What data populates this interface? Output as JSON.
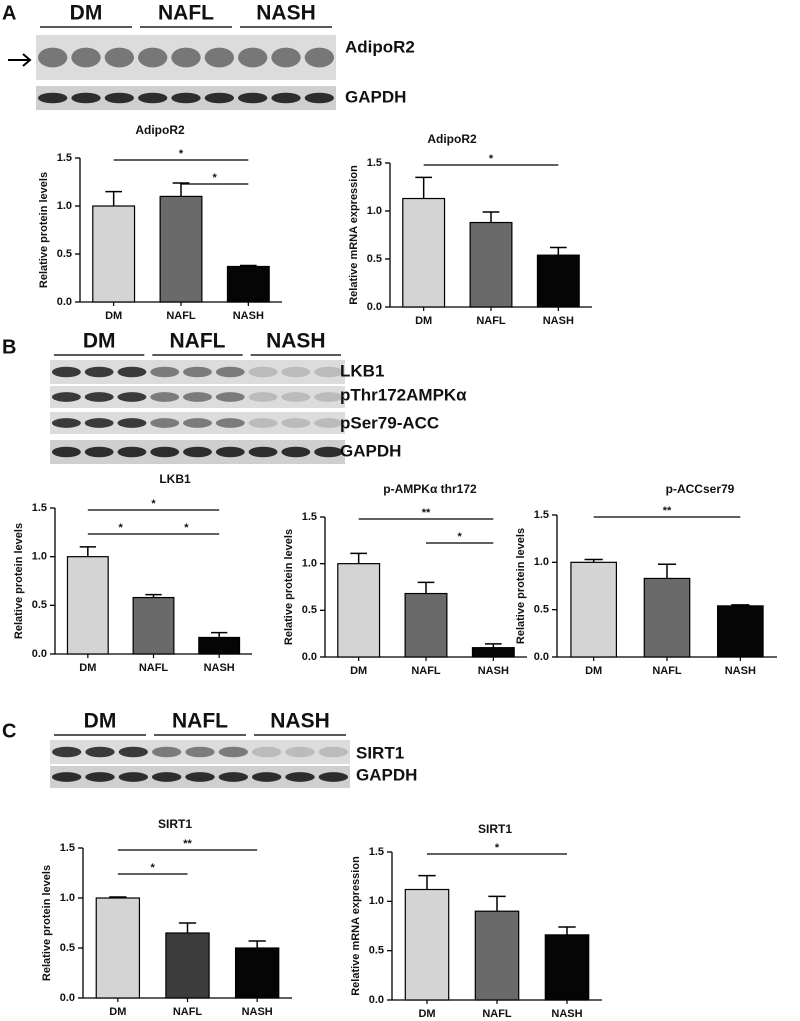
{
  "panels": [
    {
      "label": "A",
      "groups": [
        "DM",
        "NAFL",
        "NASH"
      ],
      "blots": [
        "AdipoR2",
        "GAPDH"
      ]
    },
    {
      "label": "B",
      "groups": [
        "DM",
        "NAFL",
        "NASH"
      ],
      "blots": [
        "LKB1",
        "pThr172AMPKα",
        "pSer79-ACC",
        "GAPDH"
      ]
    },
    {
      "label": "C",
      "groups": [
        "DM",
        "NAFL",
        "NASH"
      ],
      "blots": [
        "SIRT1",
        "GAPDH"
      ]
    }
  ],
  "chart_data": [
    {
      "type": "bar",
      "title": "AdipoR2",
      "y_label": "Relative protein levels",
      "categories": [
        "DM",
        "NAFL",
        "NASH"
      ],
      "values": [
        1.0,
        1.1,
        0.37
      ],
      "errors": [
        0.15,
        0.14,
        0.01
      ],
      "colors": [
        "#d4d4d4",
        "#6a6a6a",
        "#050505"
      ],
      "ylim": [
        0,
        1.5
      ],
      "yticks": [
        {
          "value": 0,
          "label": "0.0"
        },
        {
          "value": 0.5,
          "label": "0.5"
        },
        {
          "value": 1,
          "label": "1.0"
        },
        {
          "value": 1.5,
          "label": "1.5"
        }
      ],
      "annotations": [
        {
          "text": "*",
          "between": [
            "DM",
            "NASH"
          ]
        },
        {
          "text": "*",
          "between": [
            "NAFL",
            "NASH"
          ]
        }
      ]
    },
    {
      "type": "bar",
      "title": "AdipoR2",
      "y_label": "Relative mRNA expression",
      "categories": [
        "DM",
        "NAFL",
        "NASH"
      ],
      "values": [
        1.13,
        0.88,
        0.54
      ],
      "errors": [
        0.22,
        0.11,
        0.08
      ],
      "colors": [
        "#d4d4d4",
        "#6a6a6a",
        "#050505"
      ],
      "ylim": [
        0,
        1.5
      ],
      "yticks": [
        {
          "value": 0,
          "label": "0.0"
        },
        {
          "value": 0.5,
          "label": "0.5"
        },
        {
          "value": 1,
          "label": "1.0"
        },
        {
          "value": 1.5,
          "label": "1.5"
        }
      ],
      "annotations": [
        {
          "text": "*",
          "between": [
            "DM",
            "NASH"
          ]
        }
      ]
    },
    {
      "type": "bar",
      "title": "LKB1",
      "y_label": "Relative protein levels",
      "categories": [
        "DM",
        "NAFL",
        "NASH"
      ],
      "values": [
        1.0,
        0.58,
        0.17
      ],
      "errors": [
        0.1,
        0.03,
        0.05
      ],
      "colors": [
        "#d4d4d4",
        "#6a6a6a",
        "#050505"
      ],
      "ylim": [
        0,
        1.5
      ],
      "yticks": [
        {
          "value": 0,
          "label": "0.0"
        },
        {
          "value": 0.5,
          "label": "0.5"
        },
        {
          "value": 1,
          "label": "1.0"
        },
        {
          "value": 1.5,
          "label": "1.5"
        }
      ],
      "annotations": [
        {
          "text": "*",
          "between": [
            "DM",
            "NASH"
          ]
        },
        {
          "text": "*",
          "between": [
            "DM",
            "NAFL"
          ]
        },
        {
          "text": "*",
          "between": [
            "NAFL",
            "NASH"
          ]
        }
      ]
    },
    {
      "type": "bar",
      "title": "p-AMPKα thr172",
      "y_label": "Relative protein levels",
      "categories": [
        "DM",
        "NAFL",
        "NASH"
      ],
      "values": [
        1.0,
        0.68,
        0.1
      ],
      "errors": [
        0.11,
        0.12,
        0.04
      ],
      "colors": [
        "#d4d4d4",
        "#6a6a6a",
        "#050505"
      ],
      "ylim": [
        0,
        1.5
      ],
      "yticks": [
        {
          "value": 0,
          "label": "0.0"
        },
        {
          "value": 0.5,
          "label": "0.5"
        },
        {
          "value": 1,
          "label": "1.0"
        },
        {
          "value": 1.5,
          "label": "1.5"
        }
      ],
      "annotations": [
        {
          "text": "**",
          "between": [
            "DM",
            "NASH"
          ]
        },
        {
          "text": "*",
          "between": [
            "NAFL",
            "NASH"
          ]
        }
      ]
    },
    {
      "type": "bar",
      "title": "p-ACCser79",
      "y_label": "Relative protein levels",
      "categories": [
        "DM",
        "NAFL",
        "NASH"
      ],
      "values": [
        1.0,
        0.83,
        0.54
      ],
      "errors": [
        0.03,
        0.15,
        0.01
      ],
      "colors": [
        "#d4d4d4",
        "#6a6a6a",
        "#050505"
      ],
      "ylim": [
        0,
        1.5
      ],
      "yticks": [
        {
          "value": 0,
          "label": "0.0"
        },
        {
          "value": 0.5,
          "label": "0.5"
        },
        {
          "value": 1,
          "label": "1.0"
        },
        {
          "value": 1.5,
          "label": "1.5"
        }
      ],
      "annotations": [
        {
          "text": "**",
          "between": [
            "DM",
            "NASH"
          ]
        }
      ]
    },
    {
      "type": "bar",
      "title": "SIRT1",
      "y_label": "Relative protein levels",
      "categories": [
        "DM",
        "NAFL",
        "NASH"
      ],
      "values": [
        1.0,
        0.65,
        0.5
      ],
      "errors": [
        0.01,
        0.1,
        0.07
      ],
      "colors": [
        "#d4d4d4",
        "#3c3c3c",
        "#050505"
      ],
      "ylim": [
        0,
        1.5
      ],
      "yticks": [
        {
          "value": 0,
          "label": "0.0"
        },
        {
          "value": 0.5,
          "label": "0.5"
        },
        {
          "value": 1,
          "label": "1.0"
        },
        {
          "value": 1.5,
          "label": "1.5"
        }
      ],
      "annotations": [
        {
          "text": "**",
          "between": [
            "DM",
            "NASH"
          ]
        },
        {
          "text": "*",
          "between": [
            "DM",
            "NAFL"
          ]
        }
      ]
    },
    {
      "type": "bar",
      "title": "SIRT1",
      "y_label": "Relative mRNA expression",
      "categories": [
        "DM",
        "NAFL",
        "NASH"
      ],
      "values": [
        1.12,
        0.9,
        0.66
      ],
      "errors": [
        0.14,
        0.15,
        0.08
      ],
      "colors": [
        "#d4d4d4",
        "#6a6a6a",
        "#050505"
      ],
      "ylim": [
        0,
        1.5
      ],
      "yticks": [
        {
          "value": 0,
          "label": "0.0"
        },
        {
          "value": 0.5,
          "label": "0.5"
        },
        {
          "value": 1,
          "label": "1.0"
        },
        {
          "value": 1.5,
          "label": "1.5"
        }
      ],
      "annotations": [
        {
          "text": "*",
          "between": [
            "DM",
            "NASH"
          ]
        }
      ]
    }
  ]
}
